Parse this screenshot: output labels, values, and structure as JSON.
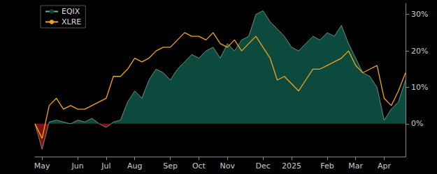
{
  "chart_data": {
    "type": "line",
    "categories": [
      null,
      "May",
      null,
      null,
      null,
      null,
      "Jun",
      null,
      null,
      null,
      "Jul",
      null,
      null,
      null,
      "Aug",
      null,
      null,
      null,
      null,
      "Sep",
      null,
      null,
      null,
      "Oct",
      null,
      null,
      null,
      "Nov",
      null,
      null,
      null,
      null,
      "Dec",
      null,
      null,
      null,
      "2025",
      null,
      null,
      null,
      null,
      "Feb",
      null,
      null,
      null,
      "Mar",
      null,
      null,
      null,
      "Apr",
      null,
      null,
      null
    ],
    "series": [
      {
        "name": "EQIX",
        "type": "area",
        "color": "#0d4a3e",
        "values": [
          0,
          -7,
          0.5,
          1,
          0.5,
          0,
          1,
          0.5,
          1.5,
          0,
          -1,
          0.5,
          1,
          6,
          9,
          7,
          12,
          15,
          14,
          12,
          15,
          17,
          19,
          18,
          20,
          21,
          18,
          22,
          20,
          23,
          24,
          30,
          31,
          28,
          26,
          24,
          21,
          20,
          22,
          24,
          23,
          25,
          24,
          27,
          22,
          18,
          14,
          13,
          10,
          1,
          4,
          6,
          12
        ]
      },
      {
        "name": "XLRE",
        "type": "line",
        "color": "#f5a31a",
        "values": [
          0,
          -4,
          5,
          7,
          4,
          5,
          4,
          4,
          5,
          6,
          7,
          13,
          13,
          15,
          18,
          17,
          18,
          20,
          21,
          21,
          23,
          25,
          24,
          24,
          23,
          25,
          22,
          21,
          23,
          20,
          22,
          24,
          21,
          18,
          12,
          13,
          11,
          9,
          12,
          15,
          15,
          16,
          17,
          18,
          20,
          16,
          14,
          15,
          16,
          7,
          5,
          9,
          14
        ]
      }
    ],
    "ylim": [
      -9,
      33
    ],
    "yticks": [
      {
        "value": 0,
        "label": "0%"
      },
      {
        "value": 10,
        "label": "10%"
      },
      {
        "value": 20,
        "label": "20%"
      },
      {
        "value": 30,
        "label": "30%"
      }
    ],
    "grid": false,
    "legend": "upper left"
  }
}
